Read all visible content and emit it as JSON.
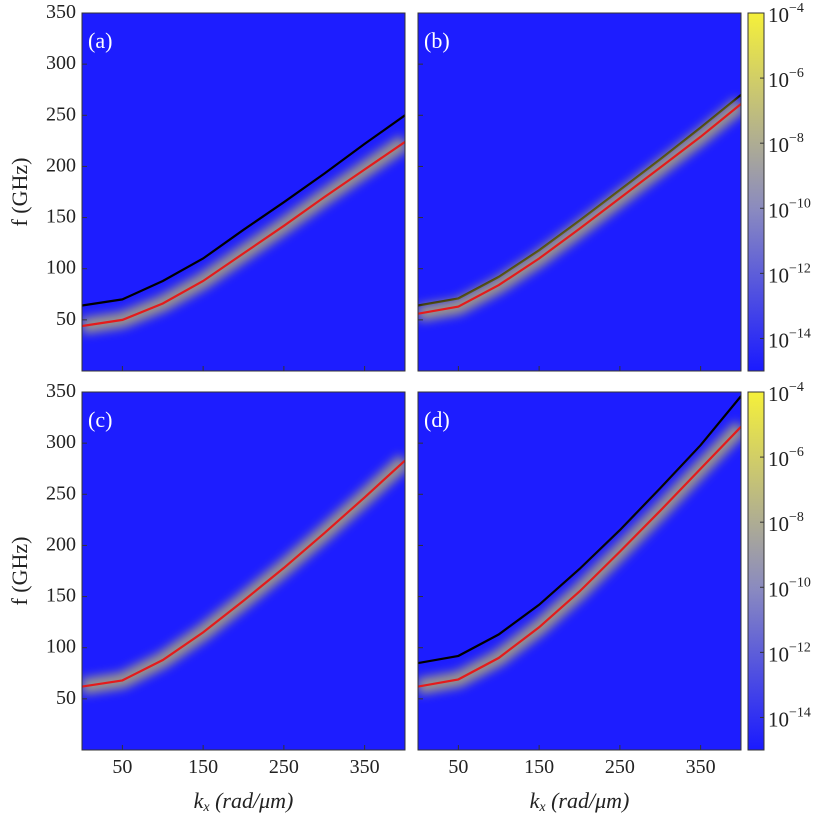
{
  "chart_data": [
    {
      "type": "line",
      "panel_label": "(a)",
      "ylabel": "f (GHz)",
      "x": [
        0,
        50,
        100,
        150,
        200,
        250,
        300,
        350,
        400
      ],
      "series": [
        {
          "color": "#000000",
          "values": [
            64,
            70,
            88,
            110,
            138,
            165,
            193,
            222,
            250
          ]
        },
        {
          "color": "#e41a1c",
          "values": [
            44,
            50,
            66,
            88,
            115,
            142,
            170,
            197,
            224
          ]
        }
      ],
      "xlim": [
        0,
        400
      ],
      "ylim": [
        0,
        350
      ],
      "xticks": [
        50,
        150,
        250,
        350
      ],
      "yticks": [
        50,
        100,
        150,
        200,
        250,
        300,
        350
      ]
    },
    {
      "type": "line",
      "panel_label": "(b)",
      "x": [
        0,
        50,
        100,
        150,
        200,
        250,
        300,
        350,
        400
      ],
      "series": [
        {
          "color": "#000000",
          "values": [
            64,
            71,
            92,
            118,
            147,
            177,
            207,
            238,
            270
          ]
        },
        {
          "color": "#e41a1c",
          "values": [
            56,
            63,
            84,
            110,
            139,
            169,
            199,
            229,
            261
          ]
        }
      ],
      "xlim": [
        0,
        400
      ],
      "ylim": [
        0,
        350
      ],
      "xticks": [
        50,
        150,
        250,
        350
      ],
      "yticks": [
        50,
        100,
        150,
        200,
        250,
        300,
        350
      ],
      "colorbar": {
        "scale": "log",
        "zlim": [
          1e-15,
          0.0001
        ],
        "colormap": [
          "#1a1aff",
          "#8a8ac0",
          "#f5f03a"
        ],
        "zticks": [
          {
            "value": 0.0001,
            "label": "10^−4"
          },
          {
            "value": 1e-06,
            "label": "10^−6"
          },
          {
            "value": 1e-08,
            "label": "10^−8"
          },
          {
            "value": 1e-10,
            "label": "10^−10"
          },
          {
            "value": 1e-12,
            "label": "10^−12"
          },
          {
            "value": 1e-14,
            "label": "10^−14"
          }
        ]
      }
    },
    {
      "type": "line",
      "panel_label": "(c)",
      "ylabel": "f (GHz)",
      "xlabel": "k_x (rad/μm)",
      "x": [
        0,
        50,
        100,
        150,
        200,
        250,
        300,
        350,
        400
      ],
      "series": [
        {
          "color": "#e41a1c",
          "values": [
            62,
            68,
            88,
            115,
            146,
            178,
            212,
            247,
            283
          ]
        }
      ],
      "xlim": [
        0,
        400
      ],
      "ylim": [
        0,
        350
      ],
      "xticks": [
        50,
        150,
        250,
        350
      ],
      "yticks": [
        50,
        100,
        150,
        200,
        250,
        300,
        350
      ]
    },
    {
      "type": "line",
      "panel_label": "(d)",
      "xlabel": "k_x (rad/μm)",
      "x": [
        0,
        50,
        100,
        150,
        200,
        250,
        300,
        350,
        400
      ],
      "series": [
        {
          "color": "#000000",
          "values": [
            85,
            92,
            113,
            142,
            177,
            215,
            256,
            298,
            346
          ]
        },
        {
          "color": "#e41a1c",
          "values": [
            62,
            69,
            90,
            120,
            155,
            194,
            234,
            275,
            316
          ]
        }
      ],
      "xlim": [
        0,
        400
      ],
      "ylim": [
        0,
        350
      ],
      "xticks": [
        50,
        150,
        250,
        350
      ],
      "yticks": [
        50,
        100,
        150,
        200,
        250,
        300,
        350
      ],
      "colorbar": {
        "scale": "log",
        "zlim": [
          1e-15,
          0.0001
        ],
        "colormap": [
          "#1a1aff",
          "#8a8ac0",
          "#f5f03a"
        ],
        "zticks": [
          {
            "value": 0.0001,
            "label": "10^−4"
          },
          {
            "value": 1e-06,
            "label": "10^−6"
          },
          {
            "value": 1e-08,
            "label": "10^−8"
          },
          {
            "value": 1e-10,
            "label": "10^−10"
          },
          {
            "value": 1e-12,
            "label": "10^−12"
          },
          {
            "value": 1e-14,
            "label": "10^−14"
          }
        ]
      }
    }
  ]
}
